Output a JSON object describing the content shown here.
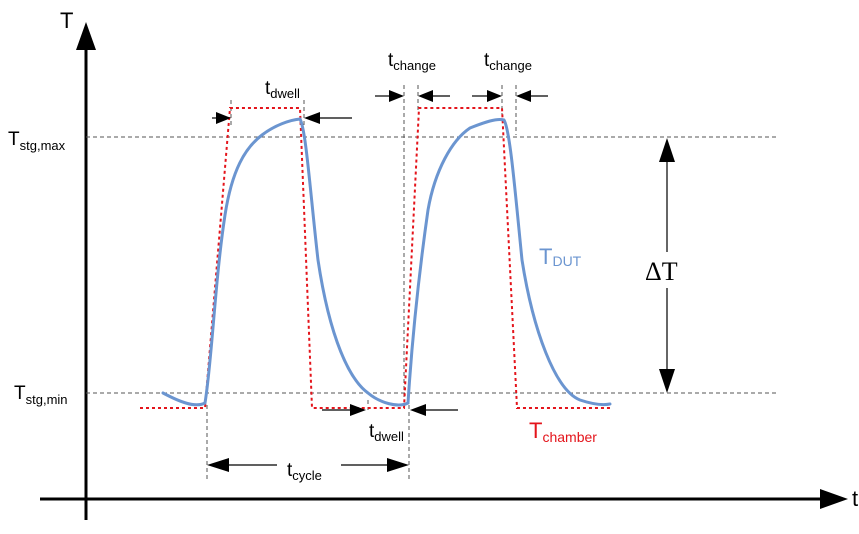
{
  "axes": {
    "y_label": "T",
    "x_label": "t"
  },
  "levels": {
    "max": {
      "base": "T",
      "sub": "stg,max"
    },
    "min": {
      "base": "T",
      "sub": "stg,min"
    }
  },
  "annotations": {
    "dwell_top": {
      "base": "t",
      "sub": "dwell"
    },
    "dwell_bottom": {
      "base": "t",
      "sub": "dwell"
    },
    "change_1": {
      "base": "t",
      "sub": "change"
    },
    "change_2": {
      "base": "t",
      "sub": "change"
    },
    "cycle": {
      "base": "t",
      "sub": "cycle"
    },
    "delta": "ΔT"
  },
  "series": {
    "dut": {
      "base": "T",
      "sub": "DUT",
      "color": "#6b95d0"
    },
    "chamber": {
      "base": "T",
      "sub": "chamber",
      "color": "#e4141b"
    }
  },
  "colors": {
    "axis": "#000000",
    "guide": "#555555"
  }
}
